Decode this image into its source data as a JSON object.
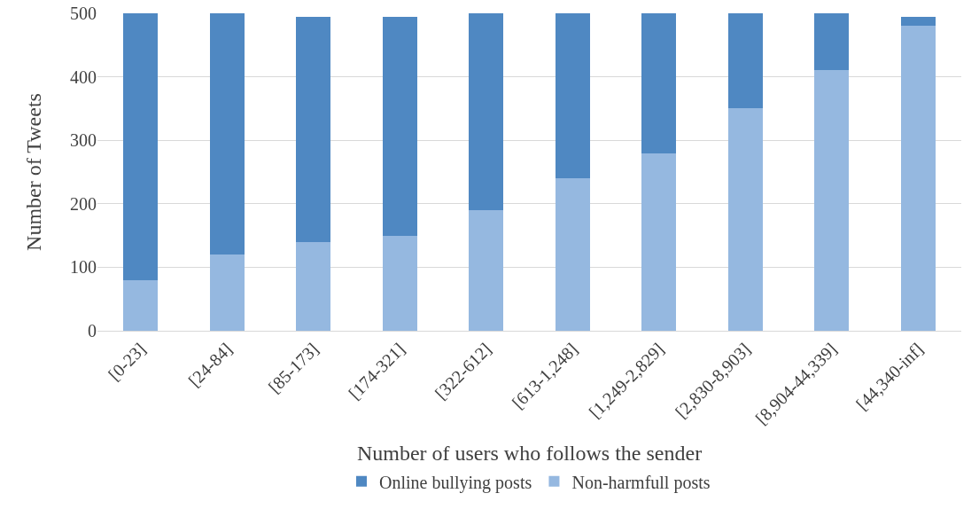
{
  "chart_data": {
    "type": "bar",
    "stacked": true,
    "xlabel": "Number of users who follows the sender",
    "ylabel": "Number of Tweets",
    "categories": [
      "[0-23]",
      "[24-84]",
      "[85-173]",
      "[174-321]",
      "[322-612]",
      "[613-1,248]",
      "[1,249-2,829]",
      "[2,830-8,903]",
      "[8,904-44,339]",
      "[44,340-inf]"
    ],
    "series": [
      {
        "name": "Non-harmfull posts",
        "color": "#95b8e0",
        "values": [
          80,
          120,
          140,
          150,
          190,
          240,
          280,
          350,
          410,
          480
        ]
      },
      {
        "name": "Online bullying posts",
        "color": "#4f88c2",
        "values": [
          420,
          380,
          355,
          345,
          310,
          260,
          220,
          150,
          90,
          15
        ]
      }
    ],
    "ylim": [
      0,
      500
    ],
    "yticks": [
      0,
      100,
      200,
      300,
      400,
      500
    ],
    "grid": "y",
    "legend": "bottom"
  }
}
